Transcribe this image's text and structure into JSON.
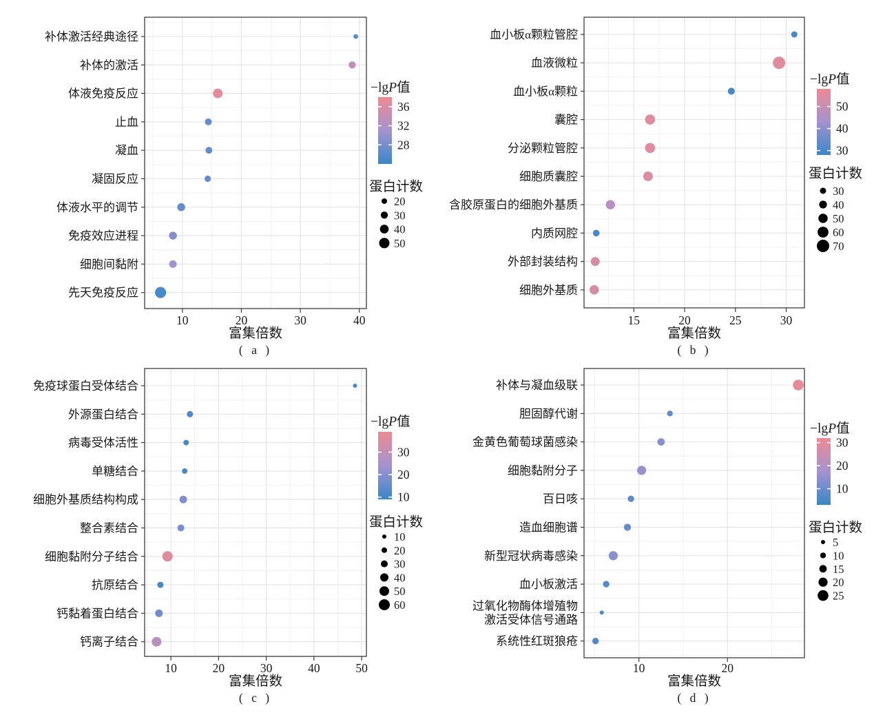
{
  "figure": {
    "description": "Four-panel enrichment bubble plots",
    "xlabel": "富集倍数",
    "color_legend_title": "−lgP值",
    "size_legend_title": "蛋白计数",
    "color_low": "#3987c8",
    "color_mid": "#a492cf",
    "color_high": "#ee8a92"
  },
  "chart_data": [
    {
      "type": "scatter",
      "caption": "( a )",
      "xlabel": "富集倍数",
      "x_domain": [
        3.6,
        41.2
      ],
      "x_ticks": [
        10,
        20,
        30,
        40
      ],
      "color_legend": {
        "title": "−lgP值",
        "ticks": [
          36,
          32,
          28
        ],
        "domain": [
          24,
          38
        ]
      },
      "size_legend": {
        "title": "蛋白计数",
        "values": [
          20,
          30,
          40,
          50
        ]
      },
      "points": [
        {
          "label": "补体激活经典途径",
          "x": 39.4,
          "count": 15,
          "neg_lg_p": 26
        },
        {
          "label": "补体的激活",
          "x": 38.8,
          "count": 30,
          "neg_lg_p": 34
        },
        {
          "label": "体液免疫反应",
          "x": 16.0,
          "count": 45,
          "neg_lg_p": 37
        },
        {
          "label": "止血",
          "x": 14.4,
          "count": 28,
          "neg_lg_p": 27
        },
        {
          "label": "凝血",
          "x": 14.5,
          "count": 28,
          "neg_lg_p": 27
        },
        {
          "label": "凝固反应",
          "x": 14.3,
          "count": 25,
          "neg_lg_p": 27
        },
        {
          "label": "体液水平的调节",
          "x": 9.8,
          "count": 35,
          "neg_lg_p": 27
        },
        {
          "label": "免疫效应进程",
          "x": 8.4,
          "count": 35,
          "neg_lg_p": 29
        },
        {
          "label": "细胞间黏附",
          "x": 8.4,
          "count": 33,
          "neg_lg_p": 31
        },
        {
          "label": "先天免疫反应",
          "x": 6.3,
          "count": 55,
          "neg_lg_p": 25
        }
      ]
    },
    {
      "type": "scatter",
      "caption": "( b )",
      "xlabel": "富集倍数",
      "x_domain": [
        10.1,
        31.8
      ],
      "x_ticks": [
        15,
        20,
        25,
        30
      ],
      "color_legend": {
        "title": "−lgP值",
        "ticks": [
          50,
          40,
          30
        ],
        "domain": [
          28,
          58
        ]
      },
      "size_legend": {
        "title": "蛋白计数",
        "values": [
          30,
          40,
          50,
          60,
          70
        ]
      },
      "points": [
        {
          "label": "血小板α颗粒管腔",
          "x": 30.8,
          "count": 30,
          "neg_lg_p": 30
        },
        {
          "label": "血液微粒",
          "x": 29.3,
          "count": 70,
          "neg_lg_p": 55
        },
        {
          "label": "血小板α颗粒",
          "x": 24.6,
          "count": 35,
          "neg_lg_p": 30
        },
        {
          "label": "囊腔",
          "x": 16.6,
          "count": 55,
          "neg_lg_p": 55
        },
        {
          "label": "分泌颗粒管腔",
          "x": 16.6,
          "count": 55,
          "neg_lg_p": 55
        },
        {
          "label": "细胞质囊腔",
          "x": 16.4,
          "count": 52,
          "neg_lg_p": 54
        },
        {
          "label": "含胶原蛋白的细胞外基质",
          "x": 12.7,
          "count": 50,
          "neg_lg_p": 47
        },
        {
          "label": "内质网腔",
          "x": 11.3,
          "count": 33,
          "neg_lg_p": 30
        },
        {
          "label": "外部封装结构",
          "x": 11.2,
          "count": 48,
          "neg_lg_p": 53
        },
        {
          "label": "细胞外基质",
          "x": 11.1,
          "count": 50,
          "neg_lg_p": 53
        }
      ]
    },
    {
      "type": "scatter",
      "caption": "( c )",
      "xlabel": "富集倍数",
      "x_domain": [
        4.5,
        51.0
      ],
      "x_ticks": [
        10,
        20,
        30,
        40,
        50
      ],
      "color_legend": {
        "title": "−lgP值",
        "ticks": [
          30,
          20,
          10
        ],
        "domain": [
          9,
          39
        ]
      },
      "size_legend": {
        "title": "蛋白计数",
        "values": [
          10,
          20,
          30,
          40,
          50,
          60
        ]
      },
      "points": [
        {
          "label": "免疫球蛋白受体结合",
          "x": 48.6,
          "count": 10,
          "neg_lg_p": 11
        },
        {
          "label": "外源蛋白结合",
          "x": 14.0,
          "count": 25,
          "neg_lg_p": 12
        },
        {
          "label": "病毒受体活性",
          "x": 13.2,
          "count": 20,
          "neg_lg_p": 11
        },
        {
          "label": "单糖结合",
          "x": 12.9,
          "count": 20,
          "neg_lg_p": 11
        },
        {
          "label": "细胞外基质结构构成",
          "x": 12.6,
          "count": 35,
          "neg_lg_p": 19
        },
        {
          "label": "整合素结合",
          "x": 12.1,
          "count": 30,
          "neg_lg_p": 18
        },
        {
          "label": "细胞黏附分子结合",
          "x": 9.3,
          "count": 55,
          "neg_lg_p": 36
        },
        {
          "label": "抗原结合",
          "x": 7.8,
          "count": 25,
          "neg_lg_p": 11
        },
        {
          "label": "钙黏着蛋白结合",
          "x": 7.5,
          "count": 35,
          "neg_lg_p": 17
        },
        {
          "label": "钙离子结合",
          "x": 7.0,
          "count": 50,
          "neg_lg_p": 28
        }
      ]
    },
    {
      "type": "scatter",
      "caption": "( d )",
      "xlabel": "富集倍数",
      "x_domain": [
        3.8,
        28.7
      ],
      "x_ticks": [
        10,
        20
      ],
      "color_legend": {
        "title": "−lgP值",
        "ticks": [
          30,
          20,
          10
        ],
        "domain": [
          3,
          32
        ]
      },
      "size_legend": {
        "title": "蛋白计数",
        "values": [
          5,
          10,
          15,
          20,
          25
        ]
      },
      "points": [
        {
          "label": "补体与凝血级联",
          "x": 28.0,
          "count": 25,
          "neg_lg_p": 31
        },
        {
          "label": "胆固醇代谢",
          "x": 13.5,
          "count": 10,
          "neg_lg_p": 8
        },
        {
          "label": "金黄色葡萄球菌感染",
          "x": 12.5,
          "count": 15,
          "neg_lg_p": 14
        },
        {
          "label": "细胞黏附分子",
          "x": 10.3,
          "count": 20,
          "neg_lg_p": 16
        },
        {
          "label": "百日咳",
          "x": 9.1,
          "count": 12,
          "neg_lg_p": 8
        },
        {
          "label": "造血细胞谱",
          "x": 8.7,
          "count": 14,
          "neg_lg_p": 9
        },
        {
          "label": "新型冠状病毒感染",
          "x": 7.1,
          "count": 20,
          "neg_lg_p": 14
        },
        {
          "label": "血小板激活",
          "x": 6.3,
          "count": 12,
          "neg_lg_p": 7
        },
        {
          "label": [
            "过氧化物酶体增殖物",
            "激活受体信号通路"
          ],
          "x": 5.8,
          "count": 5,
          "neg_lg_p": 5
        },
        {
          "label": "系统性红斑狼疮",
          "x": 5.1,
          "count": 12,
          "neg_lg_p": 6
        }
      ]
    }
  ]
}
